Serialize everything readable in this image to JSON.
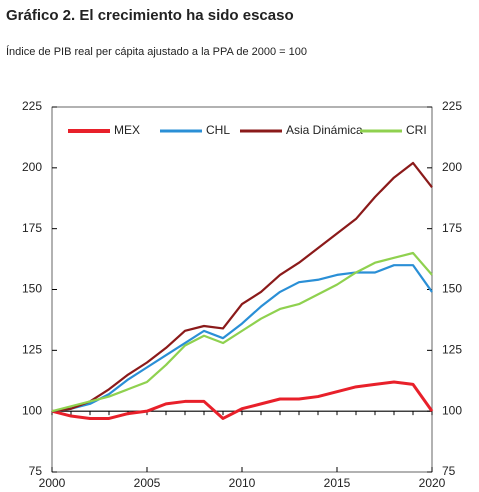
{
  "chart_data": {
    "type": "line",
    "title": "Gráfico 2. El crecimiento ha sido escaso",
    "subtitle": "Índice de PIB real per cápita ajustado a la PPA de 2000 = 100",
    "x": [
      2000,
      2001,
      2002,
      2003,
      2004,
      2005,
      2006,
      2007,
      2008,
      2009,
      2010,
      2011,
      2012,
      2013,
      2014,
      2015,
      2016,
      2017,
      2018,
      2019,
      2020
    ],
    "xlim": [
      2000,
      2020
    ],
    "xticks": [
      2000,
      2005,
      2010,
      2015,
      2020
    ],
    "ylim": [
      75,
      225
    ],
    "yticks": [
      75,
      100,
      125,
      150,
      175,
      200,
      225
    ],
    "series": [
      {
        "name": "MEX",
        "color": "#e8202a",
        "values": [
          100,
          98,
          97,
          97,
          99,
          100,
          103,
          104,
          104,
          97,
          101,
          103,
          105,
          105,
          106,
          108,
          110,
          111,
          112,
          111,
          100
        ]
      },
      {
        "name": "CHL",
        "color": "#2a8fd6",
        "values": [
          100,
          101,
          103,
          107,
          113,
          118,
          123,
          128,
          133,
          130,
          136,
          143,
          149,
          153,
          154,
          156,
          157,
          157,
          160,
          160,
          149
        ]
      },
      {
        "name": "Asia Dinámica",
        "color": "#8b1a1a",
        "values": [
          100,
          101,
          104,
          109,
          115,
          120,
          126,
          133,
          135,
          134,
          144,
          149,
          156,
          161,
          167,
          173,
          179,
          188,
          196,
          202,
          192
        ]
      },
      {
        "name": "CRI",
        "color": "#8fd14f",
        "values": [
          100,
          102,
          104,
          106,
          109,
          112,
          119,
          127,
          131,
          128,
          133,
          138,
          142,
          144,
          148,
          152,
          157,
          161,
          163,
          165,
          156
        ]
      }
    ]
  }
}
